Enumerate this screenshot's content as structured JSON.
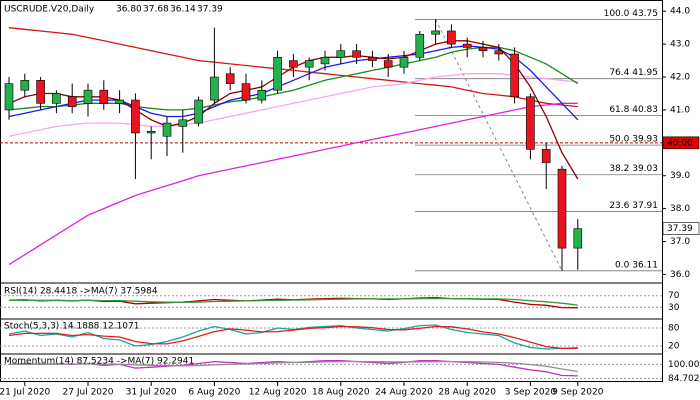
{
  "chart_data": [
    {
      "type": "candlestick",
      "title": "USCRUDE.V20,Daily",
      "title_values": [
        "36.80",
        "37.68",
        "36.14",
        "37.39"
      ],
      "categories": [
        null,
        "21 Jul 2020",
        null,
        null,
        null,
        "27 Jul 2020",
        null,
        null,
        null,
        "31 Jul 2020",
        null,
        null,
        null,
        "6 Aug 2020",
        null,
        null,
        null,
        "12 Aug 2020",
        null,
        null,
        null,
        "18 Aug 2020",
        null,
        null,
        null,
        "24 Aug 2020",
        null,
        null,
        null,
        "28 Aug 2020",
        null,
        null,
        null,
        "3 Sep 2020",
        null,
        null,
        "9 Sep 2020"
      ],
      "open": [
        41.0,
        41.6,
        41.9,
        41.2,
        41.4,
        41.2,
        41.6,
        41.2,
        41.3,
        40.3,
        40.2,
        40.5,
        40.6,
        41.3,
        42.1,
        41.8,
        41.3,
        41.6,
        42.5,
        42.3,
        42.4,
        42.6,
        42.8,
        42.6,
        42.5,
        42.3,
        42.6,
        43.3,
        43.4,
        43.0,
        42.9,
        42.8,
        42.7,
        41.4,
        39.8,
        39.2,
        36.8
      ],
      "high": [
        42.0,
        42.1,
        42.0,
        41.6,
        41.8,
        41.8,
        41.9,
        41.6,
        41.5,
        40.5,
        40.8,
        41.0,
        41.4,
        43.5,
        42.3,
        42.1,
        41.9,
        42.8,
        42.7,
        42.6,
        42.8,
        43.0,
        43.0,
        42.8,
        42.7,
        42.8,
        43.4,
        43.75,
        43.6,
        43.2,
        43.1,
        43.0,
        42.9,
        41.5,
        40.0,
        39.3,
        37.68
      ],
      "low": [
        40.7,
        41.4,
        41.0,
        40.9,
        40.9,
        40.8,
        41.0,
        40.9,
        38.9,
        39.5,
        39.6,
        39.7,
        40.5,
        41.2,
        41.6,
        41.2,
        41.2,
        41.5,
        42.0,
        41.9,
        42.2,
        42.4,
        42.4,
        42.3,
        42.0,
        42.1,
        42.5,
        43.0,
        42.9,
        42.6,
        42.6,
        42.5,
        41.2,
        39.5,
        38.6,
        36.11,
        36.14
      ],
      "close": [
        41.8,
        41.9,
        41.2,
        41.5,
        41.1,
        41.6,
        41.2,
        41.3,
        40.3,
        40.35,
        40.6,
        40.7,
        41.3,
        42.0,
        41.8,
        41.3,
        41.6,
        42.6,
        42.3,
        42.5,
        42.6,
        42.8,
        42.6,
        42.5,
        42.3,
        42.6,
        43.3,
        43.4,
        43.0,
        42.9,
        42.8,
        42.7,
        41.4,
        39.8,
        39.4,
        36.8,
        37.39
      ],
      "up_color": "#22b14c",
      "down_color": "#e8141e",
      "series": [
        {
          "color": "#d01818",
          "values": [
            43.5,
            43.45,
            43.4,
            43.35,
            43.3,
            43.2,
            43.1,
            43.0,
            42.9,
            42.8,
            42.7,
            42.6,
            42.5,
            42.45,
            42.4,
            42.35,
            42.3,
            42.25,
            42.2,
            42.15,
            42.1,
            42.05,
            42.0,
            41.95,
            41.9,
            41.85,
            41.8,
            41.75,
            41.7,
            41.6,
            41.5,
            41.45,
            41.4,
            41.3,
            41.2,
            41.15,
            41.1
          ]
        },
        {
          "color": "#e020e0",
          "values": [
            36.3,
            36.6,
            36.9,
            37.2,
            37.5,
            37.8,
            38.0,
            38.2,
            38.4,
            38.55,
            38.7,
            38.85,
            39.0,
            39.1,
            39.2,
            39.3,
            39.4,
            39.5,
            39.6,
            39.7,
            39.8,
            39.9,
            40.0,
            40.1,
            40.2,
            40.3,
            40.4,
            40.5,
            40.6,
            40.7,
            40.8,
            40.9,
            41.0,
            41.1,
            41.15,
            41.2,
            41.2
          ]
        },
        {
          "color": "#f4a6f0",
          "values": [
            40.2,
            40.3,
            40.4,
            40.5,
            40.55,
            40.6,
            40.6,
            40.6,
            40.55,
            40.5,
            40.5,
            40.55,
            40.6,
            40.7,
            40.8,
            40.9,
            41.0,
            41.1,
            41.2,
            41.3,
            41.4,
            41.5,
            41.6,
            41.7,
            41.75,
            41.8,
            41.9,
            42.0,
            42.05,
            42.1,
            42.1,
            42.1,
            42.05,
            42.0,
            41.95,
            41.9,
            41.85
          ]
        },
        {
          "color": "#1a8a1a",
          "values": [
            41.0,
            41.05,
            41.1,
            41.1,
            41.15,
            41.2,
            41.2,
            41.2,
            41.1,
            41.05,
            41.0,
            41.0,
            41.05,
            41.15,
            41.25,
            41.3,
            41.4,
            41.5,
            41.6,
            41.75,
            41.9,
            42.0,
            42.1,
            42.2,
            42.3,
            42.4,
            42.5,
            42.6,
            42.75,
            42.85,
            42.9,
            42.9,
            42.8,
            42.6,
            42.4,
            42.1,
            41.8
          ]
        },
        {
          "color": "#1a1aee",
          "values": [
            40.8,
            40.9,
            41.0,
            41.1,
            41.2,
            41.3,
            41.3,
            41.3,
            41.1,
            40.9,
            40.8,
            40.8,
            40.9,
            41.1,
            41.3,
            41.4,
            41.5,
            41.7,
            41.9,
            42.1,
            42.3,
            42.4,
            42.5,
            42.55,
            42.6,
            42.65,
            42.7,
            42.8,
            42.9,
            42.95,
            42.9,
            42.85,
            42.6,
            42.2,
            41.7,
            41.2,
            40.7
          ]
        },
        {
          "color": "#8b0000",
          "values": [
            41.2,
            41.4,
            41.5,
            41.5,
            41.4,
            41.4,
            41.4,
            41.3,
            41.0,
            40.7,
            40.5,
            40.6,
            40.8,
            41.2,
            41.5,
            41.6,
            41.7,
            42.0,
            42.3,
            42.5,
            42.6,
            42.6,
            42.65,
            42.6,
            42.55,
            42.6,
            42.8,
            43.0,
            43.1,
            43.1,
            43.0,
            42.9,
            42.4,
            41.7,
            40.8,
            39.7,
            38.9
          ]
        }
      ],
      "ylim": [
        35.8,
        44.25
      ],
      "yticks": [
        {
          "value": 44,
          "label": "44.0"
        },
        {
          "value": 43,
          "label": "43.0"
        },
        {
          "value": 42,
          "label": "42.0"
        },
        {
          "value": 41,
          "label": "41.0"
        },
        {
          "value": 40,
          "label": "40.0"
        },
        {
          "value": 39,
          "label": "39.0"
        },
        {
          "value": 38,
          "label": "38.0"
        },
        {
          "value": 37,
          "label": "37.0"
        },
        {
          "value": 36,
          "label": "36.0"
        }
      ],
      "fib_levels": [
        {
          "value": 43.75,
          "label": "100.0 43.75"
        },
        {
          "value": 41.95,
          "label": "76.4 41.95"
        },
        {
          "value": 40.83,
          "label": "61.8 40.83"
        },
        {
          "value": 39.93,
          "label": "50.0 39.93"
        },
        {
          "value": 39.03,
          "label": "38.2 39.03"
        },
        {
          "value": 37.91,
          "label": "23.6 37.91"
        },
        {
          "value": 36.11,
          "label": "0.0 36.11"
        }
      ],
      "price_markers": [
        {
          "value": 40,
          "label": "40.00",
          "color": "#e00000"
        },
        {
          "value": 37.39,
          "label": "37.39",
          "color": "#ffffff"
        }
      ]
    },
    {
      "type": "line",
      "title": "RSI(14) 28.4418 ->MA(7) 37.5984",
      "series": [
        {
          "color": "#b00000",
          "values": [
            55,
            56,
            52,
            54,
            52,
            55,
            50,
            51,
            42,
            44,
            46,
            48,
            52,
            57,
            54,
            52,
            55,
            58,
            56,
            58,
            60,
            61,
            60,
            59,
            57,
            59,
            62,
            63,
            60,
            59,
            58,
            57,
            48,
            40,
            37,
            29,
            28.44
          ]
        },
        {
          "color": "#3a9a3a",
          "values": [
            54,
            54,
            54,
            54,
            53,
            54,
            53,
            53,
            51,
            49,
            48,
            47,
            48,
            50,
            51,
            52,
            53,
            54,
            55,
            56,
            57,
            58,
            59,
            59,
            59,
            59,
            60,
            60,
            60,
            60,
            59,
            59,
            57,
            53,
            49,
            44,
            37.6
          ]
        }
      ],
      "ylim": [
        0,
        100
      ],
      "yticks": [
        70,
        30
      ]
    },
    {
      "type": "line",
      "title": "Stoch(5,3,3) 14.1888 12.1071",
      "series": [
        {
          "color": "#20a0a0",
          "values": [
            60,
            70,
            55,
            60,
            50,
            65,
            45,
            40,
            20,
            25,
            35,
            50,
            70,
            85,
            75,
            60,
            65,
            80,
            75,
            82,
            85,
            88,
            80,
            75,
            70,
            78,
            88,
            90,
            75,
            65,
            60,
            55,
            30,
            15,
            10,
            12,
            14.19
          ]
        },
        {
          "color": "#e02020",
          "values": [
            55,
            62,
            62,
            62,
            55,
            58,
            53,
            50,
            35,
            28,
            27,
            37,
            52,
            68,
            77,
            73,
            67,
            68,
            73,
            79,
            81,
            85,
            84,
            81,
            75,
            74,
            79,
            85,
            84,
            77,
            67,
            60,
            48,
            33,
            18,
            12,
            12.11
          ]
        }
      ],
      "ylim": [
        0,
        100
      ],
      "yticks": [
        80,
        20
      ]
    },
    {
      "type": "line",
      "title": "Momentum(14) 87.5234 ->MA(7) 92.2941",
      "series": [
        {
          "color": "#c030c0",
          "values": [
            100,
            101,
            100,
            100.5,
            100,
            101,
            99,
            100,
            96,
            97,
            98,
            99,
            101,
            103,
            102,
            101,
            102,
            103,
            102,
            103,
            104,
            104,
            103,
            102,
            101,
            102,
            104,
            104,
            103,
            102,
            101,
            100,
            97,
            94,
            92,
            88,
            87.52
          ]
        },
        {
          "color": "#909090",
          "values": [
            100,
            100,
            100.2,
            100.3,
            100.4,
            100.5,
            100.3,
            100.2,
            99.5,
            99,
            98.7,
            98.5,
            98.8,
            99.5,
            100,
            100.5,
            101,
            101.6,
            102,
            102.3,
            102.7,
            103,
            103.1,
            103,
            102.8,
            102.6,
            102.7,
            102.9,
            103,
            102.9,
            102.6,
            102.2,
            101.3,
            99.8,
            98,
            95,
            92.29
          ]
        }
      ],
      "ylim": [
        82,
        108
      ],
      "yticks": [
        {
          "value": 100,
          "label": "100.0000"
        },
        {
          "value": 84.7029,
          "label": "84.7029"
        }
      ]
    }
  ]
}
